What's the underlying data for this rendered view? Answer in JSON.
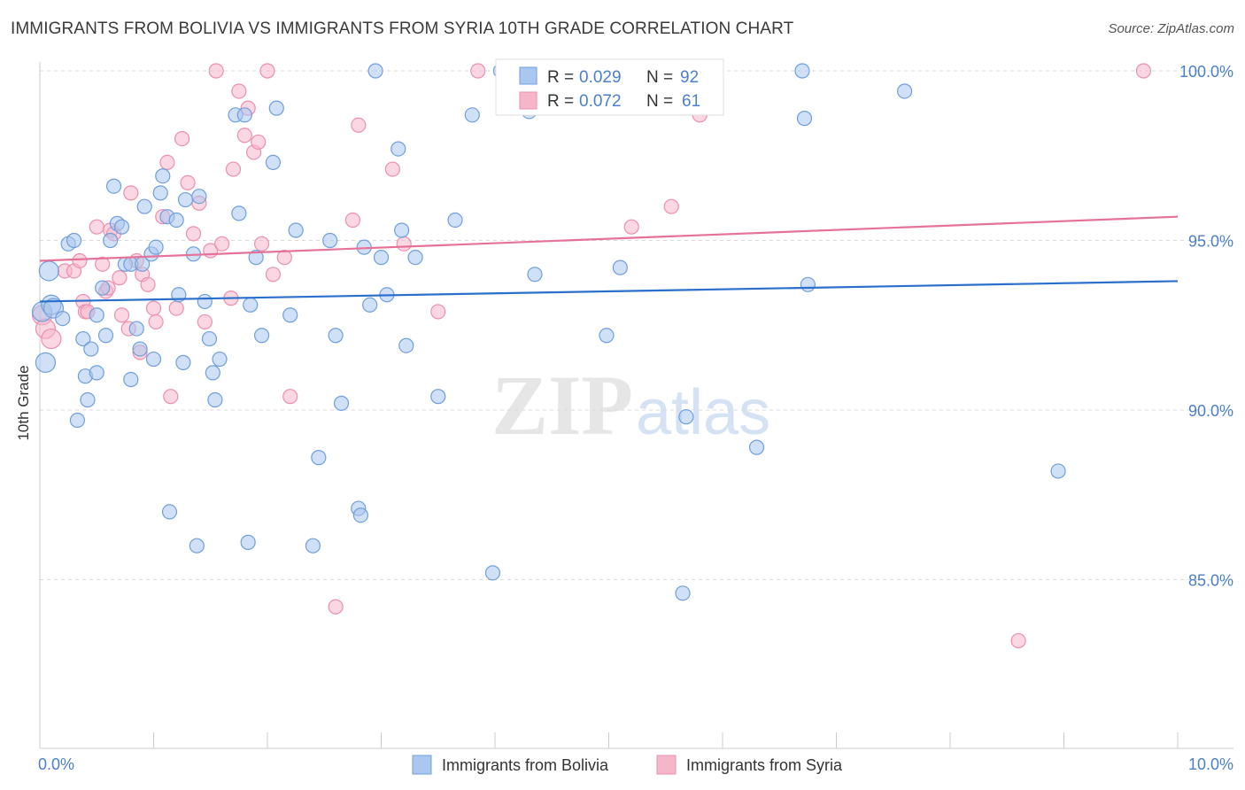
{
  "header": {
    "title": "IMMIGRANTS FROM BOLIVIA VS IMMIGRANTS FROM SYRIA 10TH GRADE CORRELATION CHART",
    "source": "Source: ZipAtlas.com"
  },
  "watermark": {
    "zip": "ZIP",
    "atlas": "atlas"
  },
  "colors": {
    "bolivia_fill": "#a9c7ef",
    "bolivia_stroke": "#6f9fdc",
    "bolivia_line": "#2a6fcb",
    "syria_fill": "#f6b6ca",
    "syria_stroke": "#ec8fae",
    "syria_line": "#e4729a",
    "label_blue": "#4a7fc9",
    "grid": "#d9d9d9"
  },
  "legend": {
    "rows": [
      {
        "r_label": "R =",
        "r_value": "0.029",
        "n_label": "N =",
        "n_value": "92"
      },
      {
        "r_label": "R =",
        "r_value": "0.072",
        "n_label": "N =",
        "n_value": "61"
      }
    ]
  },
  "chart_data": {
    "type": "scatter",
    "title": "IMMIGRANTS FROM BOLIVIA VS IMMIGRANTS FROM SYRIA 10TH GRADE CORRELATION CHART",
    "xlabel": "",
    "ylabel": "10th Grade",
    "xlim": [
      0,
      10
    ],
    "ylim": [
      80.5,
      100.6
    ],
    "x_tick_labels": [
      "0.0%",
      "10.0%"
    ],
    "y_ticks": [
      85,
      90,
      95,
      100
    ],
    "y_tick_labels": [
      "85.0%",
      "90.0%",
      "95.0%",
      "100.0%"
    ],
    "legend_position": "top-center",
    "series": [
      {
        "name": "Immigrants from Bolivia",
        "r": 0.029,
        "n": 92,
        "trend": {
          "x": [
            0,
            10
          ],
          "y": [
            93.2,
            93.8
          ]
        },
        "points": [
          [
            0.02,
            92.9
          ],
          [
            0.05,
            91.4
          ],
          [
            0.08,
            94.1
          ],
          [
            0.1,
            93.1
          ],
          [
            0.12,
            93.0
          ],
          [
            0.2,
            92.7
          ],
          [
            0.25,
            94.9
          ],
          [
            0.3,
            95.0
          ],
          [
            0.33,
            89.7
          ],
          [
            0.38,
            92.1
          ],
          [
            0.4,
            91.0
          ],
          [
            0.42,
            90.3
          ],
          [
            0.45,
            91.8
          ],
          [
            0.5,
            92.8
          ],
          [
            0.5,
            91.1
          ],
          [
            0.55,
            93.6
          ],
          [
            0.58,
            92.2
          ],
          [
            0.62,
            95.0
          ],
          [
            0.65,
            96.6
          ],
          [
            0.68,
            95.5
          ],
          [
            0.72,
            95.4
          ],
          [
            0.75,
            94.3
          ],
          [
            0.8,
            94.3
          ],
          [
            0.8,
            90.9
          ],
          [
            0.85,
            92.4
          ],
          [
            0.88,
            91.8
          ],
          [
            0.9,
            94.3
          ],
          [
            0.92,
            96.0
          ],
          [
            0.98,
            94.6
          ],
          [
            1.0,
            91.5
          ],
          [
            1.02,
            94.8
          ],
          [
            1.06,
            96.4
          ],
          [
            1.08,
            96.9
          ],
          [
            1.12,
            95.7
          ],
          [
            1.14,
            87.0
          ],
          [
            1.2,
            95.6
          ],
          [
            1.22,
            93.4
          ],
          [
            1.26,
            91.4
          ],
          [
            1.28,
            96.2
          ],
          [
            1.35,
            94.6
          ],
          [
            1.38,
            86.0
          ],
          [
            1.4,
            96.3
          ],
          [
            1.45,
            93.2
          ],
          [
            1.49,
            92.1
          ],
          [
            1.52,
            91.1
          ],
          [
            1.54,
            90.3
          ],
          [
            1.58,
            91.5
          ],
          [
            1.72,
            98.7
          ],
          [
            1.75,
            95.8
          ],
          [
            1.8,
            98.7
          ],
          [
            1.83,
            86.1
          ],
          [
            1.85,
            93.1
          ],
          [
            1.9,
            94.5
          ],
          [
            1.95,
            92.2
          ],
          [
            2.05,
            97.3
          ],
          [
            2.08,
            98.9
          ],
          [
            2.2,
            92.8
          ],
          [
            2.25,
            95.3
          ],
          [
            2.4,
            86.0
          ],
          [
            2.45,
            88.6
          ],
          [
            2.55,
            95.0
          ],
          [
            2.6,
            92.2
          ],
          [
            2.65,
            90.2
          ],
          [
            2.8,
            87.1
          ],
          [
            2.82,
            86.9
          ],
          [
            2.85,
            94.8
          ],
          [
            2.9,
            93.1
          ],
          [
            2.95,
            100.0
          ],
          [
            3.0,
            94.5
          ],
          [
            3.05,
            93.4
          ],
          [
            3.15,
            97.7
          ],
          [
            3.18,
            95.3
          ],
          [
            3.22,
            91.9
          ],
          [
            3.3,
            94.5
          ],
          [
            3.5,
            90.4
          ],
          [
            3.65,
            95.6
          ],
          [
            3.8,
            98.7
          ],
          [
            3.98,
            85.2
          ],
          [
            4.05,
            100.0
          ],
          [
            4.3,
            98.8
          ],
          [
            4.35,
            94.0
          ],
          [
            4.98,
            92.2
          ],
          [
            5.1,
            94.2
          ],
          [
            5.65,
            84.6
          ],
          [
            5.68,
            89.8
          ],
          [
            6.3,
            88.9
          ],
          [
            6.7,
            100.0
          ],
          [
            6.72,
            98.6
          ],
          [
            6.75,
            93.7
          ],
          [
            7.6,
            99.4
          ],
          [
            8.95,
            88.2
          ]
        ]
      },
      {
        "name": "Immigrants from Syria",
        "r": 0.072,
        "n": 61,
        "trend": {
          "x": [
            0,
            10
          ],
          "y": [
            94.4,
            95.7
          ]
        },
        "points": [
          [
            0.02,
            92.8
          ],
          [
            0.05,
            92.4
          ],
          [
            0.1,
            92.1
          ],
          [
            0.22,
            94.1
          ],
          [
            0.3,
            94.1
          ],
          [
            0.35,
            94.4
          ],
          [
            0.38,
            93.2
          ],
          [
            0.4,
            92.9
          ],
          [
            0.42,
            92.9
          ],
          [
            0.5,
            95.4
          ],
          [
            0.55,
            94.3
          ],
          [
            0.58,
            93.5
          ],
          [
            0.6,
            93.6
          ],
          [
            0.62,
            95.3
          ],
          [
            0.65,
            95.2
          ],
          [
            0.7,
            93.9
          ],
          [
            0.72,
            92.8
          ],
          [
            0.78,
            92.4
          ],
          [
            0.8,
            96.4
          ],
          [
            0.85,
            94.4
          ],
          [
            0.88,
            91.7
          ],
          [
            0.9,
            94.0
          ],
          [
            0.95,
            93.7
          ],
          [
            1.0,
            93.0
          ],
          [
            1.02,
            92.6
          ],
          [
            1.08,
            95.7
          ],
          [
            1.12,
            97.3
          ],
          [
            1.15,
            90.4
          ],
          [
            1.2,
            93.0
          ],
          [
            1.25,
            98.0
          ],
          [
            1.3,
            96.7
          ],
          [
            1.35,
            95.2
          ],
          [
            1.4,
            96.1
          ],
          [
            1.45,
            92.6
          ],
          [
            1.5,
            94.7
          ],
          [
            1.55,
            100.0
          ],
          [
            1.6,
            94.9
          ],
          [
            1.68,
            93.3
          ],
          [
            1.7,
            97.1
          ],
          [
            1.75,
            99.4
          ],
          [
            1.8,
            98.1
          ],
          [
            1.83,
            98.9
          ],
          [
            1.88,
            97.6
          ],
          [
            1.92,
            97.9
          ],
          [
            1.95,
            94.9
          ],
          [
            2.0,
            100.0
          ],
          [
            2.05,
            94.0
          ],
          [
            2.15,
            94.5
          ],
          [
            2.2,
            90.4
          ],
          [
            2.6,
            84.2
          ],
          [
            2.75,
            95.6
          ],
          [
            2.8,
            98.4
          ],
          [
            3.1,
            97.1
          ],
          [
            3.2,
            94.9
          ],
          [
            3.5,
            92.9
          ],
          [
            3.85,
            100.0
          ],
          [
            5.2,
            95.4
          ],
          [
            5.55,
            96.0
          ],
          [
            5.8,
            98.7
          ],
          [
            8.6,
            83.2
          ],
          [
            9.7,
            100.0
          ]
        ]
      }
    ]
  }
}
